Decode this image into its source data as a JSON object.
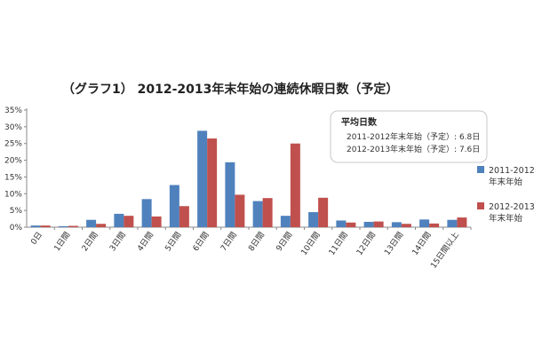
{
  "chart_data": {
    "type": "bar",
    "title": "（グラフ1） 2012-2013年末年始の連続休暇日数（予定）",
    "categories": [
      "0日",
      "1日間",
      "2日間",
      "3日間",
      "4日間",
      "5日間",
      "6日間",
      "7日間",
      "8日間",
      "9日間",
      "10日間",
      "11日間",
      "12日間",
      "13日間",
      "14日間",
      "15日間以上"
    ],
    "series": [
      {
        "name": "2011-2012年末年始",
        "color": "#4f81bd",
        "values": [
          0.5,
          0.3,
          2.2,
          4.0,
          8.4,
          12.6,
          28.8,
          19.4,
          7.8,
          3.4,
          4.5,
          2.0,
          1.6,
          1.5,
          2.3,
          2.2
        ]
      },
      {
        "name": "2012-2013年末年始",
        "color": "#c0504d",
        "values": [
          0.5,
          0.4,
          1.0,
          3.4,
          3.2,
          6.3,
          26.5,
          9.7,
          8.7,
          25.0,
          8.8,
          1.4,
          1.7,
          1.0,
          1.1,
          2.9
        ]
      }
    ],
    "legend_labels": [
      [
        "2011-2012",
        "年末年始"
      ],
      [
        "2012-2013",
        "年末年始"
      ]
    ],
    "yticks": [
      "0%",
      "5%",
      "10%",
      "15%",
      "20%",
      "25%",
      "30%",
      "35%"
    ],
    "ylim": [
      0,
      35
    ],
    "xlabel": "",
    "ylabel": "",
    "grid": false,
    "legend_position": "right",
    "info_box": {
      "title": "平均日数",
      "lines": [
        "2011-2012年末年始（予定）: 6.8日",
        "2012-2013年末年始（予定）: 7.6日"
      ]
    }
  }
}
